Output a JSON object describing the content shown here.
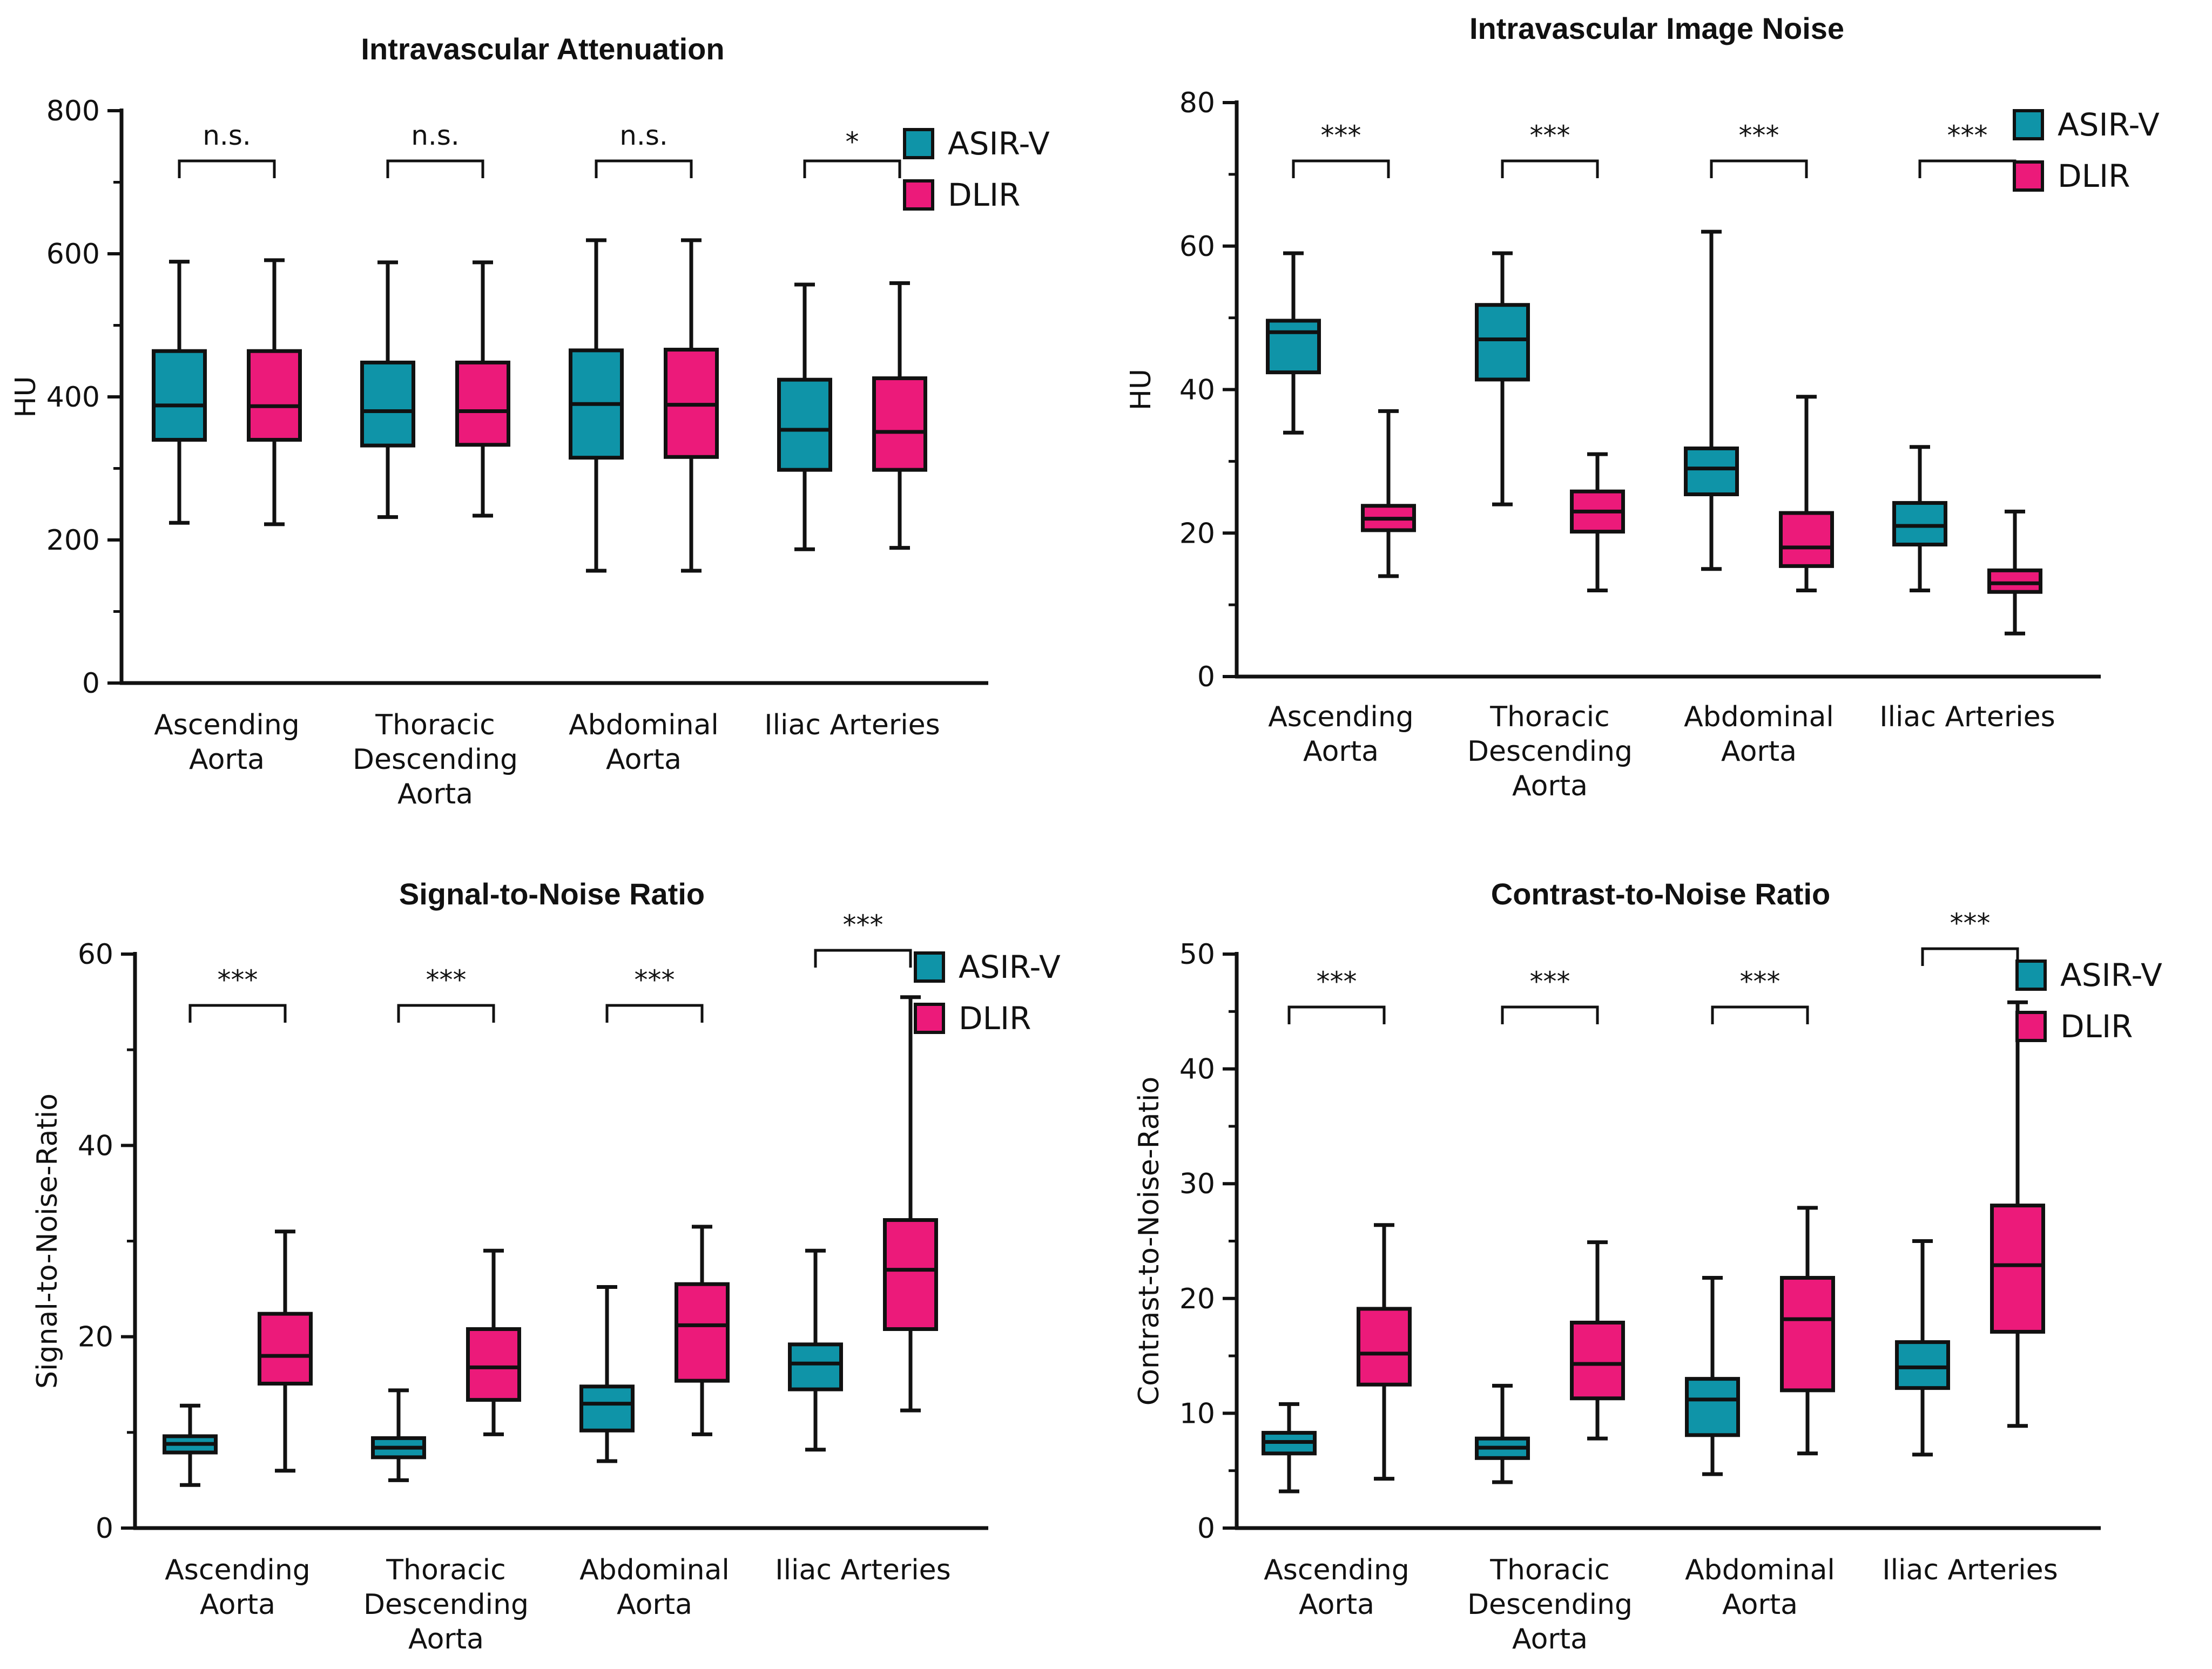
{
  "colors": {
    "asirv": "#0f94a8",
    "dlir": "#ec1a7a",
    "ink": "#111111"
  },
  "chart_data": [
    {
      "type": "box",
      "title": "Intravascular Attenuation",
      "ylabel": "HU",
      "ylim": [
        0,
        800
      ],
      "ticks": [
        0,
        200,
        400,
        600,
        800
      ],
      "minor_ticks": [
        100,
        300,
        500,
        700
      ],
      "categories": [
        [
          "Ascending",
          "Aorta"
        ],
        [
          "Thoracic",
          "Descending",
          "Aorta"
        ],
        [
          "Abdominal",
          "Aorta"
        ],
        [
          "Iliac Arteries"
        ]
      ],
      "significance": [
        "n.s.",
        "n.s.",
        "n.s.",
        "*"
      ],
      "legend": [
        "ASIR-V",
        "DLIR"
      ],
      "series": [
        {
          "name": "ASIR-V",
          "boxes": [
            {
              "min": 224,
              "q1": 340,
              "median": 388,
              "q3": 464,
              "max": 589
            },
            {
              "min": 232,
              "q1": 332,
              "median": 380,
              "q3": 448,
              "max": 588
            },
            {
              "min": 157,
              "q1": 315,
              "median": 390,
              "q3": 465,
              "max": 619
            },
            {
              "min": 187,
              "q1": 298,
              "median": 354,
              "q3": 424,
              "max": 557
            }
          ]
        },
        {
          "name": "DLIR",
          "boxes": [
            {
              "min": 222,
              "q1": 340,
              "median": 387,
              "q3": 464,
              "max": 591
            },
            {
              "min": 234,
              "q1": 333,
              "median": 380,
              "q3": 448,
              "max": 588
            },
            {
              "min": 157,
              "q1": 316,
              "median": 389,
              "q3": 466,
              "max": 619
            },
            {
              "min": 189,
              "q1": 298,
              "median": 351,
              "q3": 426,
              "max": 559
            }
          ]
        }
      ]
    },
    {
      "type": "box",
      "title": "Intravascular Image  Noise",
      "ylabel": "HU",
      "ylim": [
        0,
        80
      ],
      "ticks": [
        0,
        20,
        40,
        60,
        80
      ],
      "minor_ticks": [
        10,
        30,
        50,
        70
      ],
      "categories": [
        [
          "Ascending",
          "Aorta"
        ],
        [
          "Thoracic",
          "Descending",
          "Aorta"
        ],
        [
          "Abdominal",
          "Aorta"
        ],
        [
          "Iliac Arteries"
        ]
      ],
      "significance": [
        "***",
        "***",
        "***",
        "***"
      ],
      "legend": [
        "ASIR-V",
        "DLIR"
      ],
      "series": [
        {
          "name": "ASIR-V",
          "boxes": [
            {
              "min": 34,
              "q1": 42.4,
              "median": 48,
              "q3": 49.6,
              "max": 59
            },
            {
              "min": 24,
              "q1": 41.4,
              "median": 47,
              "q3": 51.8,
              "max": 59
            },
            {
              "min": 15,
              "q1": 25.4,
              "median": 29,
              "q3": 31.8,
              "max": 62
            },
            {
              "min": 12,
              "q1": 18.4,
              "median": 21,
              "q3": 24.2,
              "max": 32
            }
          ]
        },
        {
          "name": "DLIR",
          "boxes": [
            {
              "min": 14,
              "q1": 20.4,
              "median": 22,
              "q3": 23.8,
              "max": 37
            },
            {
              "min": 12,
              "q1": 20.2,
              "median": 23,
              "q3": 25.8,
              "max": 31
            },
            {
              "min": 12,
              "q1": 15.4,
              "median": 18,
              "q3": 22.8,
              "max": 39
            },
            {
              "min": 6,
              "q1": 11.8,
              "median": 13,
              "q3": 14.8,
              "max": 23
            }
          ]
        }
      ]
    },
    {
      "type": "box",
      "title": "Signal-to-Noise Ratio",
      "ylabel": "Signal-to-Noise-Ratio",
      "ylim": [
        0,
        60
      ],
      "ticks": [
        0,
        20,
        40,
        60
      ],
      "minor_ticks": [
        10,
        30,
        50
      ],
      "categories": [
        [
          "Ascending",
          "Aorta"
        ],
        [
          "Thoracic",
          "Descending",
          "Aorta"
        ],
        [
          "Abdominal",
          "Aorta"
        ],
        [
          "Iliac Arteries"
        ]
      ],
      "significance": [
        "***",
        "***",
        "***",
        "***"
      ],
      "legend": [
        "ASIR-V",
        "DLIR"
      ],
      "series": [
        {
          "name": "ASIR-V",
          "boxes": [
            {
              "min": 4.5,
              "q1": 7.9,
              "median": 8.8,
              "q3": 9.6,
              "max": 12.8
            },
            {
              "min": 5,
              "q1": 7.4,
              "median": 8.4,
              "q3": 9.4,
              "max": 14.4
            },
            {
              "min": 7,
              "q1": 10.2,
              "median": 13,
              "q3": 14.8,
              "max": 25.2
            },
            {
              "min": 8.2,
              "q1": 14.5,
              "median": 17.2,
              "q3": 19.2,
              "max": 29
            }
          ]
        },
        {
          "name": "DLIR",
          "boxes": [
            {
              "min": 6,
              "q1": 15.1,
              "median": 18,
              "q3": 22.4,
              "max": 31
            },
            {
              "min": 9.8,
              "q1": 13.4,
              "median": 16.8,
              "q3": 20.8,
              "max": 29
            },
            {
              "min": 9.8,
              "q1": 15.4,
              "median": 21.2,
              "q3": 25.5,
              "max": 31.5
            },
            {
              "min": 12.3,
              "q1": 20.8,
              "median": 27,
              "q3": 32.2,
              "max": 55.5
            }
          ]
        }
      ]
    },
    {
      "type": "box",
      "title": "Contrast-to-Noise Ratio",
      "ylabel": "Contrast-to-Noise-Ratio",
      "ylim": [
        0,
        50
      ],
      "ticks": [
        0,
        10,
        20,
        30,
        40,
        50
      ],
      "minor_ticks": [
        5,
        15,
        25,
        35,
        45
      ],
      "categories": [
        [
          "Ascending",
          "Aorta"
        ],
        [
          "Thoracic",
          "Descending",
          "Aorta"
        ],
        [
          "Abdominal",
          "Aorta"
        ],
        [
          "Iliac Arteries"
        ]
      ],
      "significance": [
        "***",
        "***",
        "***",
        "***"
      ],
      "legend": [
        "ASIR-V",
        "DLIR"
      ],
      "series": [
        {
          "name": "ASIR-V",
          "boxes": [
            {
              "min": 3.2,
              "q1": 6.5,
              "median": 7.5,
              "q3": 8.3,
              "max": 10.8
            },
            {
              "min": 4,
              "q1": 6.1,
              "median": 7,
              "q3": 7.8,
              "max": 12.4
            },
            {
              "min": 4.7,
              "q1": 8.1,
              "median": 11.2,
              "q3": 13,
              "max": 21.8
            },
            {
              "min": 6.4,
              "q1": 12.2,
              "median": 14,
              "q3": 16.2,
              "max": 25
            }
          ]
        },
        {
          "name": "DLIR",
          "boxes": [
            {
              "min": 4.3,
              "q1": 12.5,
              "median": 15.2,
              "q3": 19.1,
              "max": 26.4
            },
            {
              "min": 7.8,
              "q1": 11.3,
              "median": 14.3,
              "q3": 17.9,
              "max": 24.9
            },
            {
              "min": 6.5,
              "q1": 12,
              "median": 18.2,
              "q3": 21.8,
              "max": 27.9
            },
            {
              "min": 8.9,
              "q1": 17.1,
              "median": 22.9,
              "q3": 28.1,
              "max": 45.8
            }
          ]
        }
      ]
    }
  ]
}
